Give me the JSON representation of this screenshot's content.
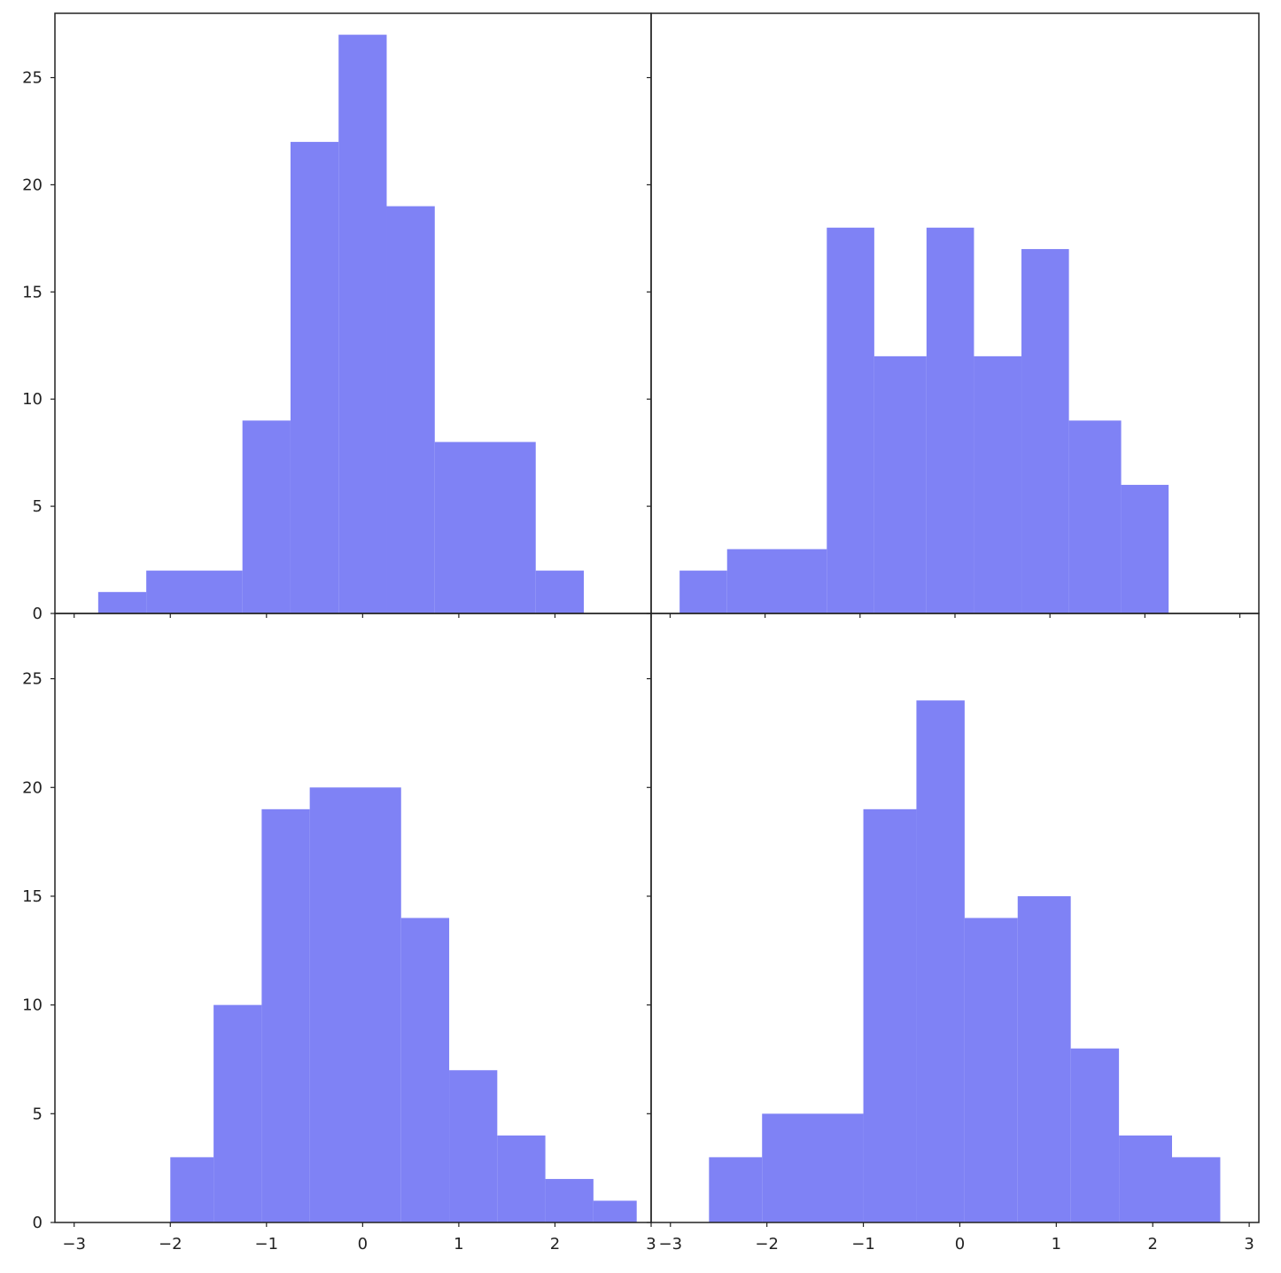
{
  "chart_data": [
    {
      "type": "bar",
      "panel": "top-left",
      "bins": [
        {
          "x0": -2.75,
          "x1": -2.25,
          "count": 1
        },
        {
          "x0": -2.25,
          "x1": -1.25,
          "count": 2
        },
        {
          "x0": -1.25,
          "x1": -0.75,
          "count": 9
        },
        {
          "x0": -0.75,
          "x1": -0.25,
          "count": 22
        },
        {
          "x0": -0.25,
          "x1": 0.25,
          "count": 27
        },
        {
          "x0": 0.25,
          "x1": 0.75,
          "count": 19
        },
        {
          "x0": 0.75,
          "x1": 1.8,
          "count": 8
        },
        {
          "x0": 1.8,
          "x1": 2.3,
          "count": 2
        }
      ],
      "color": "#7f82f5",
      "xlim": [
        -3.2,
        3.0
      ],
      "ylim": [
        0,
        28
      ],
      "yticks": [
        "0",
        "5",
        "10",
        "15",
        "20",
        "25"
      ],
      "xticks": []
    },
    {
      "type": "bar",
      "panel": "top-right",
      "bins": [
        {
          "x0": -2.9,
          "x1": -2.4,
          "count": 2
        },
        {
          "x0": -2.4,
          "x1": -1.35,
          "count": 3
        },
        {
          "x0": -1.35,
          "x1": -0.85,
          "count": 18
        },
        {
          "x0": -0.85,
          "x1": -0.3,
          "count": 12
        },
        {
          "x0": -0.3,
          "x1": 0.2,
          "count": 18
        },
        {
          "x0": 0.2,
          "x1": 0.7,
          "count": 12
        },
        {
          "x0": 0.7,
          "x1": 1.2,
          "count": 17
        },
        {
          "x0": 1.2,
          "x1": 1.75,
          "count": 9
        },
        {
          "x0": 1.75,
          "x1": 2.25,
          "count": 6
        }
      ],
      "color": "#7f82f5",
      "xlim": [
        -3.2,
        3.2
      ],
      "ylim": [
        0,
        28
      ],
      "yticks": [],
      "xticks": []
    },
    {
      "type": "bar",
      "panel": "bottom-left",
      "bins": [
        {
          "x0": -2.0,
          "x1": -1.55,
          "count": 3
        },
        {
          "x0": -1.55,
          "x1": -1.05,
          "count": 10
        },
        {
          "x0": -1.05,
          "x1": -0.55,
          "count": 19
        },
        {
          "x0": -0.55,
          "x1": 0.4,
          "count": 20
        },
        {
          "x0": 0.4,
          "x1": 0.9,
          "count": 14
        },
        {
          "x0": 0.9,
          "x1": 1.4,
          "count": 7
        },
        {
          "x0": 1.4,
          "x1": 1.9,
          "count": 4
        },
        {
          "x0": 1.9,
          "x1": 2.4,
          "count": 2
        },
        {
          "x0": 2.4,
          "x1": 2.85,
          "count": 1
        }
      ],
      "color": "#7f82f5",
      "xlim": [
        -3.2,
        3.0
      ],
      "ylim": [
        0,
        28
      ],
      "yticks": [
        "0",
        "5",
        "10",
        "15",
        "20",
        "25"
      ],
      "xticks": [
        "−3",
        "−2",
        "−1",
        "0",
        "1",
        "2",
        "3"
      ]
    },
    {
      "type": "bar",
      "panel": "bottom-right",
      "bins": [
        {
          "x0": -2.6,
          "x1": -2.05,
          "count": 3
        },
        {
          "x0": -2.05,
          "x1": -1.0,
          "count": 5
        },
        {
          "x0": -1.0,
          "x1": -0.45,
          "count": 19
        },
        {
          "x0": -0.45,
          "x1": 0.05,
          "count": 24
        },
        {
          "x0": 0.05,
          "x1": 0.6,
          "count": 14
        },
        {
          "x0": 0.6,
          "x1": 1.15,
          "count": 15
        },
        {
          "x0": 1.15,
          "x1": 1.65,
          "count": 8
        },
        {
          "x0": 1.65,
          "x1": 2.2,
          "count": 4
        },
        {
          "x0": 2.2,
          "x1": 2.7,
          "count": 3
        }
      ],
      "color": "#7f82f5",
      "xlim": [
        -3.2,
        3.1
      ],
      "ylim": [
        0,
        28
      ],
      "yticks": [],
      "xticks": [
        "−3",
        "−2",
        "−1",
        "0",
        "1",
        "2",
        "3"
      ]
    }
  ]
}
